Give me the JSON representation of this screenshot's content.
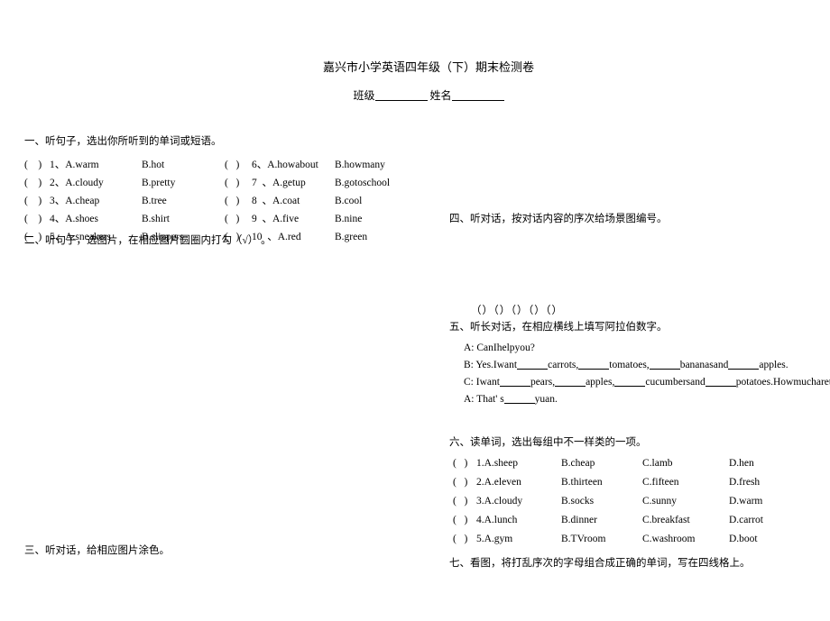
{
  "header": {
    "title": "嘉兴市小学英语四年级（下）期末检测卷",
    "class_label": "班级",
    "name_label": "姓名"
  },
  "section1": {
    "title": "一、听句子，选出你所听到的单词或短语。",
    "left": [
      {
        "num": "1",
        "a": "A.warm",
        "b": "B.hot"
      },
      {
        "num": "2",
        "a": "A.cloudy",
        "b": "B.pretty"
      },
      {
        "num": "3",
        "a": "A.cheap",
        "b": "B.tree"
      },
      {
        "num": "4",
        "a": "A.shoes",
        "b": "B.shirt"
      },
      {
        "num": "5",
        "a": "A.sneakers",
        "b": "B.slippers"
      }
    ],
    "right": [
      {
        "num": "6",
        "a": "A.howabout",
        "b": "B.howmany"
      },
      {
        "num": "7",
        "a": "A.getup",
        "b": "B.gotoschool"
      },
      {
        "num": "8",
        "a": "A.coat",
        "b": "B.cool"
      },
      {
        "num": "9",
        "a": "A.five",
        "b": "B.nine"
      },
      {
        "num": "10",
        "a": "A.red",
        "b": "B.green"
      }
    ]
  },
  "section2": {
    "title": "二、听句子，选图片，在相应图片圆圈内打勾（√）   。"
  },
  "section3": {
    "title": "三、听对话，给相应图片涂色。"
  },
  "section4": {
    "title": "四、听对话，按对话内容的序次给场景图编号。",
    "brackets": "（）（）（）（）（）"
  },
  "section5": {
    "title": "五、听长对话，在相应横线上填写阿拉伯数字。",
    "lines": {
      "l1": "A: CanIhelpyou?",
      "l2a": "B: Yes.Iwant",
      "l2b": "carrots,",
      "l2c": "tomatoes,",
      "l2d": "bananasand",
      "l2e": "apples.",
      "l3a": "C: Iwant",
      "l3b": "pears,",
      "l3c": "apples,",
      "l3d": "cucumbersand",
      "l3e": "potatoes.Howmucharethey?",
      "l4a": "A: That' s",
      "l4b": "yuan."
    }
  },
  "section6": {
    "title": "六、读单词，选出每组中不一样类的一项。",
    "rows": [
      {
        "num": "1",
        "a": "A.sheep",
        "b": "B.cheap",
        "c": "C.lamb",
        "d": "D.hen"
      },
      {
        "num": "2",
        "a": "A.eleven",
        "b": "B.thirteen",
        "c": "C.fifteen",
        "d": "D.fresh"
      },
      {
        "num": "3",
        "a": "A.cloudy",
        "b": "B.socks",
        "c": "C.sunny",
        "d": "D.warm"
      },
      {
        "num": "4",
        "a": "A.lunch",
        "b": "B.dinner",
        "c": "C.breakfast",
        "d": "D.carrot"
      },
      {
        "num": "5",
        "a": "A.gym",
        "b": "B.TVroom",
        "c": "C.washroom",
        "d": "D.boot"
      }
    ]
  },
  "section7": {
    "title": "七、看图，将打乱序次的字母组合成正确的单词，写在四线格上。"
  }
}
